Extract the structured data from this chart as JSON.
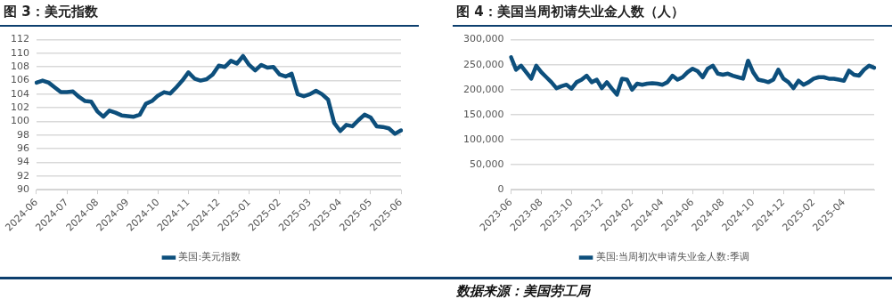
{
  "chart_data": [
    {
      "type": "line",
      "title": "图 3：美元指数",
      "categories": [
        "2024-06",
        null,
        null,
        null,
        null,
        "2024-07",
        null,
        null,
        null,
        null,
        "2024-08",
        null,
        null,
        null,
        null,
        "2024-09",
        null,
        null,
        null,
        null,
        "2024-10",
        null,
        null,
        null,
        null,
        "2024-11",
        null,
        null,
        null,
        null,
        "2024-12",
        null,
        null,
        null,
        null,
        "2025-01",
        null,
        null,
        null,
        null,
        "2025-02",
        null,
        null,
        null,
        null,
        "2025-03",
        null,
        null,
        null,
        null,
        "2025-04",
        null,
        null,
        null,
        null,
        "2025-05",
        null,
        null,
        null,
        null,
        "2025-06"
      ],
      "series": [
        {
          "name": "美国:美元指数",
          "color": "#0d4f7c",
          "values": [
            105.7,
            106.0,
            105.7,
            105.0,
            104.3,
            104.3,
            104.4,
            103.6,
            103.0,
            102.9,
            101.5,
            100.7,
            101.6,
            101.3,
            100.9,
            100.8,
            100.7,
            101.0,
            102.6,
            103.0,
            103.8,
            104.3,
            104.1,
            105.0,
            106.0,
            107.2,
            106.3,
            106.0,
            106.2,
            106.9,
            108.2,
            108.0,
            108.9,
            108.5,
            109.6,
            108.3,
            107.5,
            108.3,
            107.9,
            108.0,
            106.9,
            106.6,
            107.0,
            104.0,
            103.7,
            104.0,
            104.5,
            104.0,
            103.2,
            99.8,
            98.6,
            99.5,
            99.3,
            100.2,
            101.0,
            100.6,
            99.3,
            99.2,
            99.0,
            98.2,
            98.7
          ]
        }
      ],
      "ylim": [
        90,
        112
      ],
      "yticks": [
        90,
        92,
        94,
        96,
        98,
        100,
        102,
        104,
        106,
        108,
        110,
        112
      ],
      "grid": "y",
      "legend": "bottom",
      "marker": "none",
      "line_style": "solid"
    },
    {
      "type": "line",
      "title": "图 4：美国当周初请失业金人数（人）",
      "categories": [
        "2023-06",
        null,
        null,
        null,
        null,
        null,
        "2023-08",
        null,
        null,
        null,
        null,
        null,
        "2023-10",
        null,
        null,
        null,
        null,
        null,
        "2023-12",
        null,
        null,
        null,
        null,
        null,
        "2024-02",
        null,
        null,
        null,
        null,
        null,
        "2024-04",
        null,
        null,
        null,
        null,
        null,
        "2024-06",
        null,
        null,
        null,
        null,
        null,
        "2024-08",
        null,
        null,
        null,
        null,
        null,
        "2024-10",
        null,
        null,
        null,
        null,
        null,
        "2024-12",
        null,
        null,
        null,
        null,
        null,
        "2025-02",
        null,
        null,
        null,
        null,
        null,
        "2025-04",
        null,
        null,
        null,
        null,
        null,
        null
      ],
      "series": [
        {
          "name": "美国:当周初次申请失业金人数:季调",
          "color": "#0d4f7c",
          "values": [
            265000,
            240000,
            248000,
            235000,
            222000,
            248000,
            235000,
            225000,
            215000,
            203000,
            207000,
            210000,
            202000,
            215000,
            220000,
            228000,
            215000,
            220000,
            203000,
            215000,
            202000,
            190000,
            222000,
            220000,
            200000,
            212000,
            210000,
            212000,
            213000,
            212000,
            210000,
            215000,
            228000,
            220000,
            225000,
            235000,
            242000,
            237000,
            225000,
            242000,
            248000,
            232000,
            230000,
            232000,
            228000,
            225000,
            222000,
            258000,
            235000,
            220000,
            218000,
            215000,
            220000,
            240000,
            222000,
            215000,
            203000,
            218000,
            210000,
            215000,
            222000,
            225000,
            225000,
            222000,
            222000,
            220000,
            218000,
            238000,
            230000,
            228000,
            240000,
            248000,
            244000
          ]
        }
      ],
      "ylim": [
        0,
        300000
      ],
      "yticks": [
        0,
        {
          "value": 50000,
          "label": "50,000"
        },
        {
          "value": 100000,
          "label": "100,000"
        },
        {
          "value": 150000,
          "label": "150,000"
        },
        {
          "value": 200000,
          "label": "200,000"
        },
        {
          "value": 250000,
          "label": "250,000"
        },
        {
          "value": 300000,
          "label": "300,000"
        }
      ],
      "grid": "y",
      "legend": "bottom",
      "marker": "none",
      "line_style": "solid",
      "annotations": [
        "数据来源：美国劳工局"
      ]
    }
  ]
}
